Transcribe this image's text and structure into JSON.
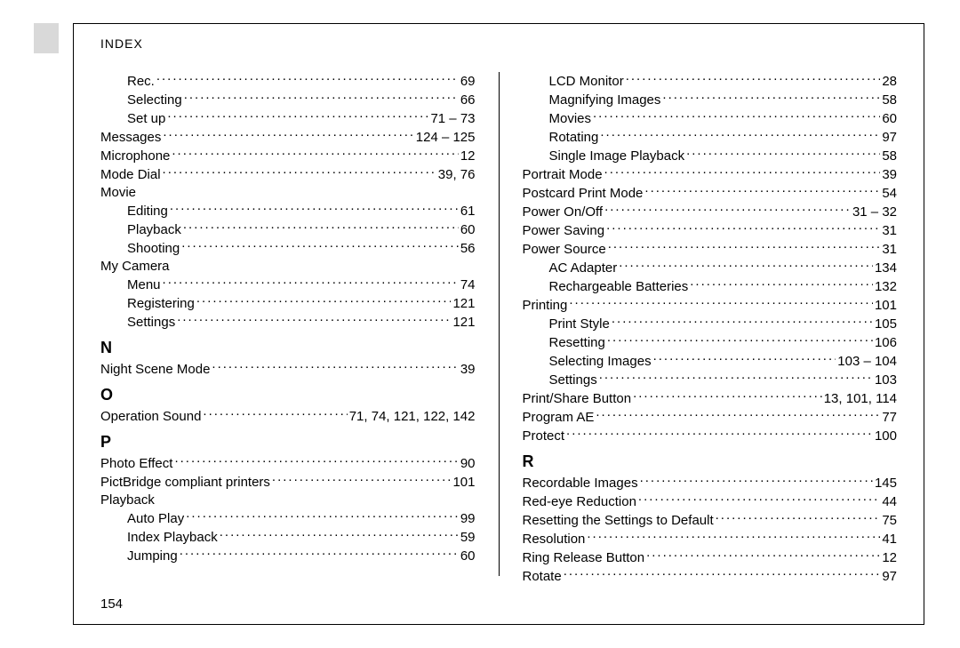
{
  "header": "INDEX",
  "pageNumber": "154",
  "leftCol": [
    {
      "label": "Rec.",
      "page": "69",
      "indent": true
    },
    {
      "label": "Selecting",
      "page": "66",
      "indent": true
    },
    {
      "label": "Set up",
      "page": "71 – 73",
      "indent": true
    },
    {
      "label": "Messages",
      "page": "124 – 125"
    },
    {
      "label": "Microphone",
      "page": "12"
    },
    {
      "label": "Mode Dial",
      "page": "39, 76"
    },
    {
      "label": "Movie",
      "noPage": true
    },
    {
      "label": "Editing",
      "page": "61",
      "indent": true
    },
    {
      "label": "Playback",
      "page": "60",
      "indent": true
    },
    {
      "label": "Shooting",
      "page": "56",
      "indent": true
    },
    {
      "label": "My Camera",
      "noPage": true
    },
    {
      "label": "Menu",
      "page": "74",
      "indent": true
    },
    {
      "label": "Registering",
      "page": "121",
      "indent": true
    },
    {
      "label": "Settings",
      "page": "121",
      "indent": true
    },
    {
      "letter": "N"
    },
    {
      "label": "Night Scene Mode",
      "page": "39"
    },
    {
      "letter": "O"
    },
    {
      "label": "Operation Sound",
      "page": "71, 74, 121, 122, 142"
    },
    {
      "letter": "P"
    },
    {
      "label": "Photo Effect",
      "page": "90"
    },
    {
      "label": "PictBridge compliant printers",
      "page": "101"
    },
    {
      "label": "Playback",
      "noPage": true
    },
    {
      "label": "Auto Play",
      "page": "99",
      "indent": true
    },
    {
      "label": "Index Playback",
      "page": "59",
      "indent": true
    },
    {
      "label": "Jumping",
      "page": "60",
      "indent": true
    }
  ],
  "rightCol": [
    {
      "label": "LCD Monitor",
      "page": "28",
      "indent": true
    },
    {
      "label": "Magnifying Images",
      "page": "58",
      "indent": true
    },
    {
      "label": "Movies",
      "page": "60",
      "indent": true
    },
    {
      "label": "Rotating",
      "page": "97",
      "indent": true
    },
    {
      "label": "Single Image Playback",
      "page": "58",
      "indent": true
    },
    {
      "label": "Portrait Mode",
      "page": "39"
    },
    {
      "label": "Postcard Print Mode",
      "page": "54"
    },
    {
      "label": "Power On/Off",
      "page": "31 – 32"
    },
    {
      "label": "Power Saving",
      "page": "31"
    },
    {
      "label": "Power Source",
      "page": "31"
    },
    {
      "label": "AC Adapter",
      "page": "134",
      "indent": true
    },
    {
      "label": "Rechargeable Batteries",
      "page": "132",
      "indent": true
    },
    {
      "label": "Printing",
      "page": "101"
    },
    {
      "label": "Print Style",
      "page": "105",
      "indent": true
    },
    {
      "label": "Resetting",
      "page": "106",
      "indent": true
    },
    {
      "label": "Selecting Images",
      "page": "103 – 104",
      "indent": true
    },
    {
      "label": "Settings",
      "page": "103",
      "indent": true
    },
    {
      "label": "Print/Share Button",
      "page": "13, 101, 114"
    },
    {
      "label": "Program AE",
      "page": "77"
    },
    {
      "label": "Protect",
      "page": "100"
    },
    {
      "letter": "R"
    },
    {
      "label": "Recordable Images",
      "page": "145"
    },
    {
      "label": "Red-eye Reduction",
      "page": "44"
    },
    {
      "label": "Resetting the Settings to Default",
      "page": "75"
    },
    {
      "label": "Resolution",
      "page": "41"
    },
    {
      "label": "Ring Release Button",
      "page": "12"
    },
    {
      "label": "Rotate",
      "page": "97"
    }
  ]
}
